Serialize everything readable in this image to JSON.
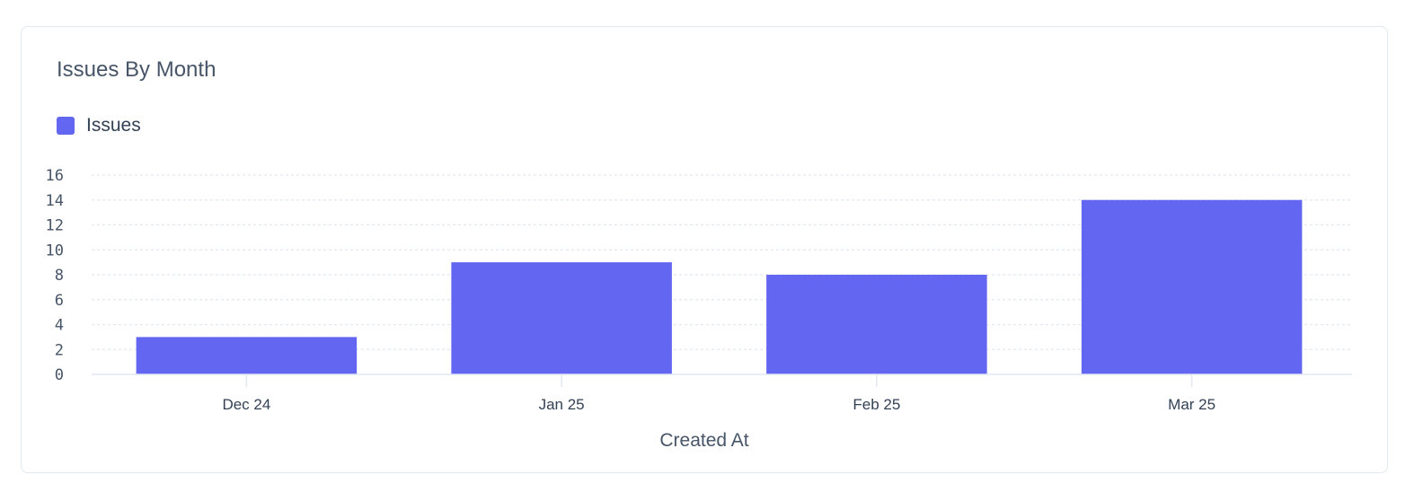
{
  "chart_data": {
    "type": "bar",
    "title": "Issues By Month",
    "categories": [
      "Dec 24",
      "Jan 25",
      "Feb 25",
      "Mar 25"
    ],
    "series": [
      {
        "name": "Issues",
        "values": [
          3,
          9,
          8,
          14
        ],
        "color": "#6366f1"
      }
    ],
    "xlabel": "Created At",
    "ylabel": "",
    "ylim": [
      0,
      16
    ],
    "yticks": [
      0,
      2,
      4,
      6,
      8,
      10,
      12,
      14,
      16
    ],
    "grid": true,
    "legend": "top-left"
  }
}
